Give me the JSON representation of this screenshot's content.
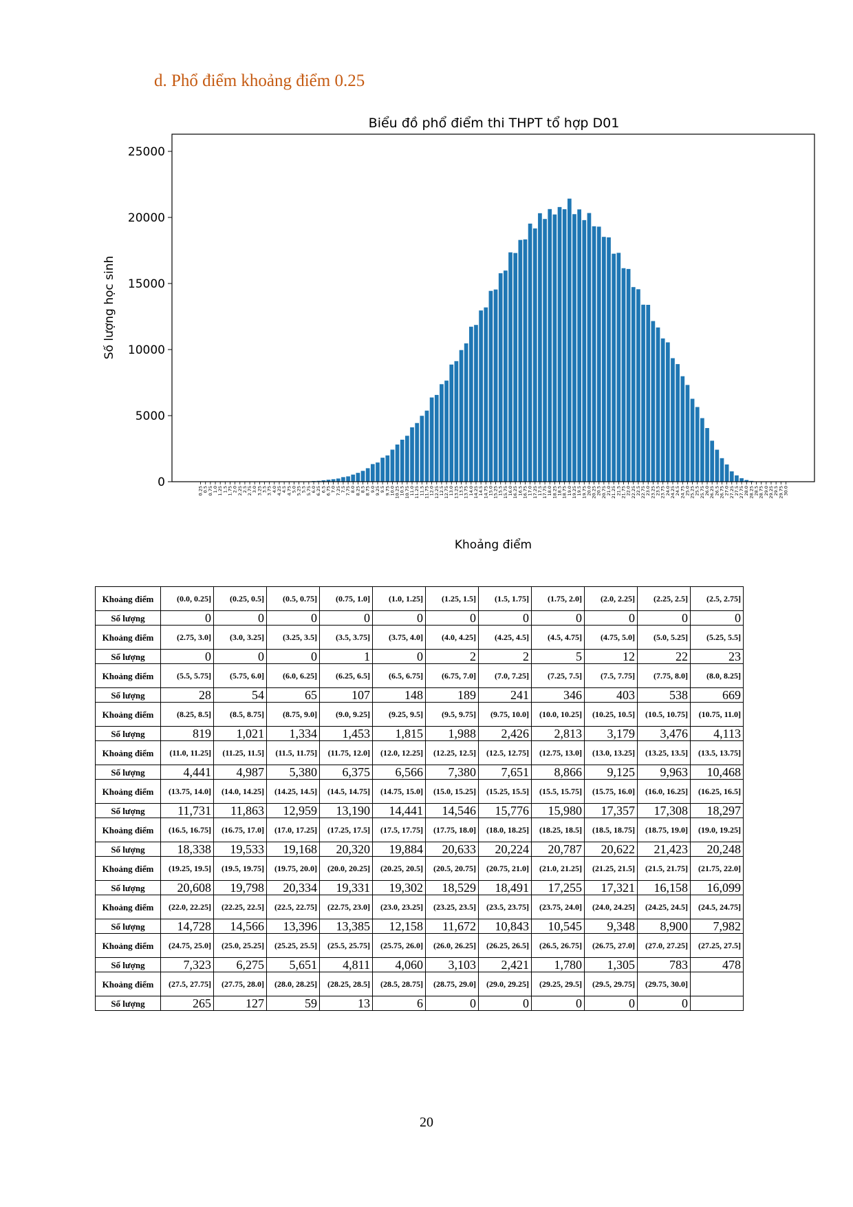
{
  "heading": "d.  Phổ điểm khoảng điểm 0.25",
  "page_number": "20",
  "table": {
    "label_range": "Khoảng điểm",
    "label_count": "Số lượng",
    "rows": [
      {
        "ranges": [
          "(0.0, 0.25]",
          "(0.25, 0.5]",
          "(0.5, 0.75]",
          "(0.75, 1.0]",
          "(1.0, 1.25]",
          "(1.25, 1.5]",
          "(1.5, 1.75]",
          "(1.75, 2.0]",
          "(2.0, 2.25]",
          "(2.25, 2.5]",
          "(2.5, 2.75]"
        ],
        "counts": [
          "0",
          "0",
          "0",
          "0",
          "0",
          "0",
          "0",
          "0",
          "0",
          "0",
          "0"
        ]
      },
      {
        "ranges": [
          "(2.75, 3.0]",
          "(3.0, 3.25]",
          "(3.25, 3.5]",
          "(3.5, 3.75]",
          "(3.75, 4.0]",
          "(4.0, 4.25]",
          "(4.25, 4.5]",
          "(4.5, 4.75]",
          "(4.75, 5.0]",
          "(5.0, 5.25]",
          "(5.25, 5.5]"
        ],
        "counts": [
          "0",
          "0",
          "0",
          "1",
          "0",
          "2",
          "2",
          "5",
          "12",
          "22",
          "23"
        ]
      },
      {
        "ranges": [
          "(5.5, 5.75]",
          "(5.75, 6.0]",
          "(6.0, 6.25]",
          "(6.25, 6.5]",
          "(6.5, 6.75]",
          "(6.75, 7.0]",
          "(7.0, 7.25]",
          "(7.25, 7.5]",
          "(7.5, 7.75]",
          "(7.75, 8.0]",
          "(8.0, 8.25]"
        ],
        "counts": [
          "28",
          "54",
          "65",
          "107",
          "148",
          "189",
          "241",
          "346",
          "403",
          "538",
          "669"
        ]
      },
      {
        "ranges": [
          "(8.25, 8.5]",
          "(8.5, 8.75]",
          "(8.75, 9.0]",
          "(9.0, 9.25]",
          "(9.25, 9.5]",
          "(9.5, 9.75]",
          "(9.75, 10.0]",
          "(10.0, 10.25]",
          "(10.25, 10.5]",
          "(10.5, 10.75]",
          "(10.75, 11.0]"
        ],
        "counts": [
          "819",
          "1,021",
          "1,334",
          "1,453",
          "1,815",
          "1,988",
          "2,426",
          "2,813",
          "3,179",
          "3,476",
          "4,113"
        ]
      },
      {
        "ranges": [
          "(11.0, 11.25]",
          "(11.25, 11.5]",
          "(11.5, 11.75]",
          "(11.75, 12.0]",
          "(12.0, 12.25]",
          "(12.25, 12.5]",
          "(12.5, 12.75]",
          "(12.75, 13.0]",
          "(13.0, 13.25]",
          "(13.25, 13.5]",
          "(13.5, 13.75]"
        ],
        "counts": [
          "4,441",
          "4,987",
          "5,380",
          "6,375",
          "6,566",
          "7,380",
          "7,651",
          "8,866",
          "9,125",
          "9,963",
          "10,468"
        ]
      },
      {
        "ranges": [
          "(13.75, 14.0]",
          "(14.0, 14.25]",
          "(14.25, 14.5]",
          "(14.5, 14.75]",
          "(14.75, 15.0]",
          "(15.0, 15.25]",
          "(15.25, 15.5]",
          "(15.5, 15.75]",
          "(15.75, 16.0]",
          "(16.0, 16.25]",
          "(16.25, 16.5]"
        ],
        "counts": [
          "11,731",
          "11,863",
          "12,959",
          "13,190",
          "14,441",
          "14,546",
          "15,776",
          "15,980",
          "17,357",
          "17,308",
          "18,297"
        ]
      },
      {
        "ranges": [
          "(16.5, 16.75]",
          "(16.75, 17.0]",
          "(17.0, 17.25]",
          "(17.25, 17.5]",
          "(17.5, 17.75]",
          "(17.75, 18.0]",
          "(18.0, 18.25]",
          "(18.25, 18.5]",
          "(18.5, 18.75]",
          "(18.75, 19.0]",
          "(19.0, 19.25]"
        ],
        "counts": [
          "18,338",
          "19,533",
          "19,168",
          "20,320",
          "19,884",
          "20,633",
          "20,224",
          "20,787",
          "20,622",
          "21,423",
          "20,248"
        ]
      },
      {
        "ranges": [
          "(19.25, 19.5]",
          "(19.5, 19.75]",
          "(19.75, 20.0]",
          "(20.0, 20.25]",
          "(20.25, 20.5]",
          "(20.5, 20.75]",
          "(20.75, 21.0]",
          "(21.0, 21.25]",
          "(21.25, 21.5]",
          "(21.5, 21.75]",
          "(21.75, 22.0]"
        ],
        "counts": [
          "20,608",
          "19,798",
          "20,334",
          "19,331",
          "19,302",
          "18,529",
          "18,491",
          "17,255",
          "17,321",
          "16,158",
          "16,099"
        ]
      },
      {
        "ranges": [
          "(22.0, 22.25]",
          "(22.25, 22.5]",
          "(22.5, 22.75]",
          "(22.75, 23.0]",
          "(23.0, 23.25]",
          "(23.25, 23.5]",
          "(23.5, 23.75]",
          "(23.75, 24.0]",
          "(24.0, 24.25]",
          "(24.25, 24.5]",
          "(24.5, 24.75]"
        ],
        "counts": [
          "14,728",
          "14,566",
          "13,396",
          "13,385",
          "12,158",
          "11,672",
          "10,843",
          "10,545",
          "9,348",
          "8,900",
          "7,982"
        ]
      },
      {
        "ranges": [
          "(24.75, 25.0]",
          "(25.0, 25.25]",
          "(25.25, 25.5]",
          "(25.5, 25.75]",
          "(25.75, 26.0]",
          "(26.0, 26.25]",
          "(26.25, 26.5]",
          "(26.5, 26.75]",
          "(26.75, 27.0]",
          "(27.0, 27.25]",
          "(27.25, 27.5]"
        ],
        "counts": [
          "7,323",
          "6,275",
          "5,651",
          "4,811",
          "4,060",
          "3,103",
          "2,421",
          "1,780",
          "1,305",
          "783",
          "478"
        ]
      },
      {
        "ranges": [
          "(27.5, 27.75]",
          "(27.75, 28.0]",
          "(28.0, 28.25]",
          "(28.25, 28.5]",
          "(28.5, 28.75]",
          "(28.75, 29.0]",
          "(29.0, 29.25]",
          "(29.25, 29.5]",
          "(29.5, 29.75]",
          "(29.75, 30.0]",
          ""
        ],
        "counts": [
          "265",
          "127",
          "59",
          "13",
          "6",
          "0",
          "0",
          "0",
          "0",
          "0",
          ""
        ]
      }
    ]
  },
  "chart_data": {
    "type": "bar",
    "title": "Biểu đồ phổ điểm thi THPT tổ hợp D01",
    "xlabel": "Khoảng điểm",
    "ylabel": "Số lượng học sinh",
    "ylim": [
      0,
      26300
    ],
    "yticks": [
      0,
      5000,
      10000,
      15000,
      20000,
      25000
    ],
    "grid": false,
    "bar_color": "#1f77b4",
    "categories": [
      "0.25",
      "0.5",
      "0.75",
      "1.0",
      "1.25",
      "1.5",
      "1.75",
      "2.0",
      "2.25",
      "2.5",
      "2.75",
      "3.0",
      "3.25",
      "3.5",
      "3.75",
      "4.0",
      "4.25",
      "4.5",
      "4.75",
      "5.0",
      "5.25",
      "5.5",
      "5.75",
      "6.0",
      "6.25",
      "6.5",
      "6.75",
      "7.0",
      "7.25",
      "7.5",
      "7.75",
      "8.0",
      "8.25",
      "8.5",
      "8.75",
      "9.0",
      "9.25",
      "9.5",
      "9.75",
      "10.0",
      "10.25",
      "10.5",
      "10.75",
      "11.0",
      "11.25",
      "11.5",
      "11.75",
      "12.0",
      "12.25",
      "12.5",
      "12.75",
      "13.0",
      "13.25",
      "13.5",
      "13.75",
      "14.0",
      "14.25",
      "14.5",
      "14.75",
      "15.0",
      "15.25",
      "15.5",
      "15.75",
      "16.0",
      "16.25",
      "16.5",
      "16.75",
      "17.0",
      "17.25",
      "17.5",
      "17.75",
      "18.0",
      "18.25",
      "18.5",
      "18.75",
      "19.0",
      "19.25",
      "19.5",
      "19.75",
      "20.0",
      "20.25",
      "20.5",
      "20.75",
      "21.0",
      "21.25",
      "21.5",
      "21.75",
      "22.0",
      "22.25",
      "22.5",
      "22.75",
      "23.0",
      "23.25",
      "23.5",
      "23.75",
      "24.0",
      "24.25",
      "24.5",
      "24.75",
      "25.0",
      "25.25",
      "25.5",
      "25.75",
      "26.0",
      "26.25",
      "26.5",
      "26.75",
      "27.0",
      "27.25",
      "27.5",
      "27.75",
      "28.0",
      "28.25",
      "28.5",
      "28.75",
      "29.0",
      "29.25",
      "29.5",
      "29.75",
      "30.0"
    ],
    "values": [
      0,
      0,
      0,
      0,
      0,
      0,
      0,
      0,
      0,
      0,
      0,
      0,
      0,
      0,
      1,
      0,
      2,
      2,
      5,
      12,
      22,
      23,
      28,
      54,
      65,
      107,
      148,
      189,
      241,
      346,
      403,
      538,
      669,
      819,
      1021,
      1334,
      1453,
      1815,
      1988,
      2426,
      2813,
      3179,
      3476,
      4113,
      4441,
      4987,
      5380,
      6375,
      6566,
      7380,
      7651,
      8866,
      9125,
      9963,
      10468,
      11731,
      11863,
      12959,
      13190,
      14441,
      14546,
      15776,
      15980,
      17357,
      17308,
      18297,
      18338,
      19533,
      19168,
      20320,
      19884,
      20633,
      20224,
      20787,
      20622,
      21423,
      20248,
      20608,
      19798,
      20334,
      19331,
      19302,
      18529,
      18491,
      17255,
      17321,
      16158,
      16099,
      14728,
      14566,
      13396,
      13385,
      12158,
      11672,
      10843,
      10545,
      9348,
      8900,
      7982,
      7323,
      6275,
      5651,
      4811,
      4060,
      3103,
      2421,
      1780,
      1305,
      783,
      478,
      265,
      127,
      59,
      13,
      6,
      0,
      0,
      0,
      0,
      0
    ]
  }
}
